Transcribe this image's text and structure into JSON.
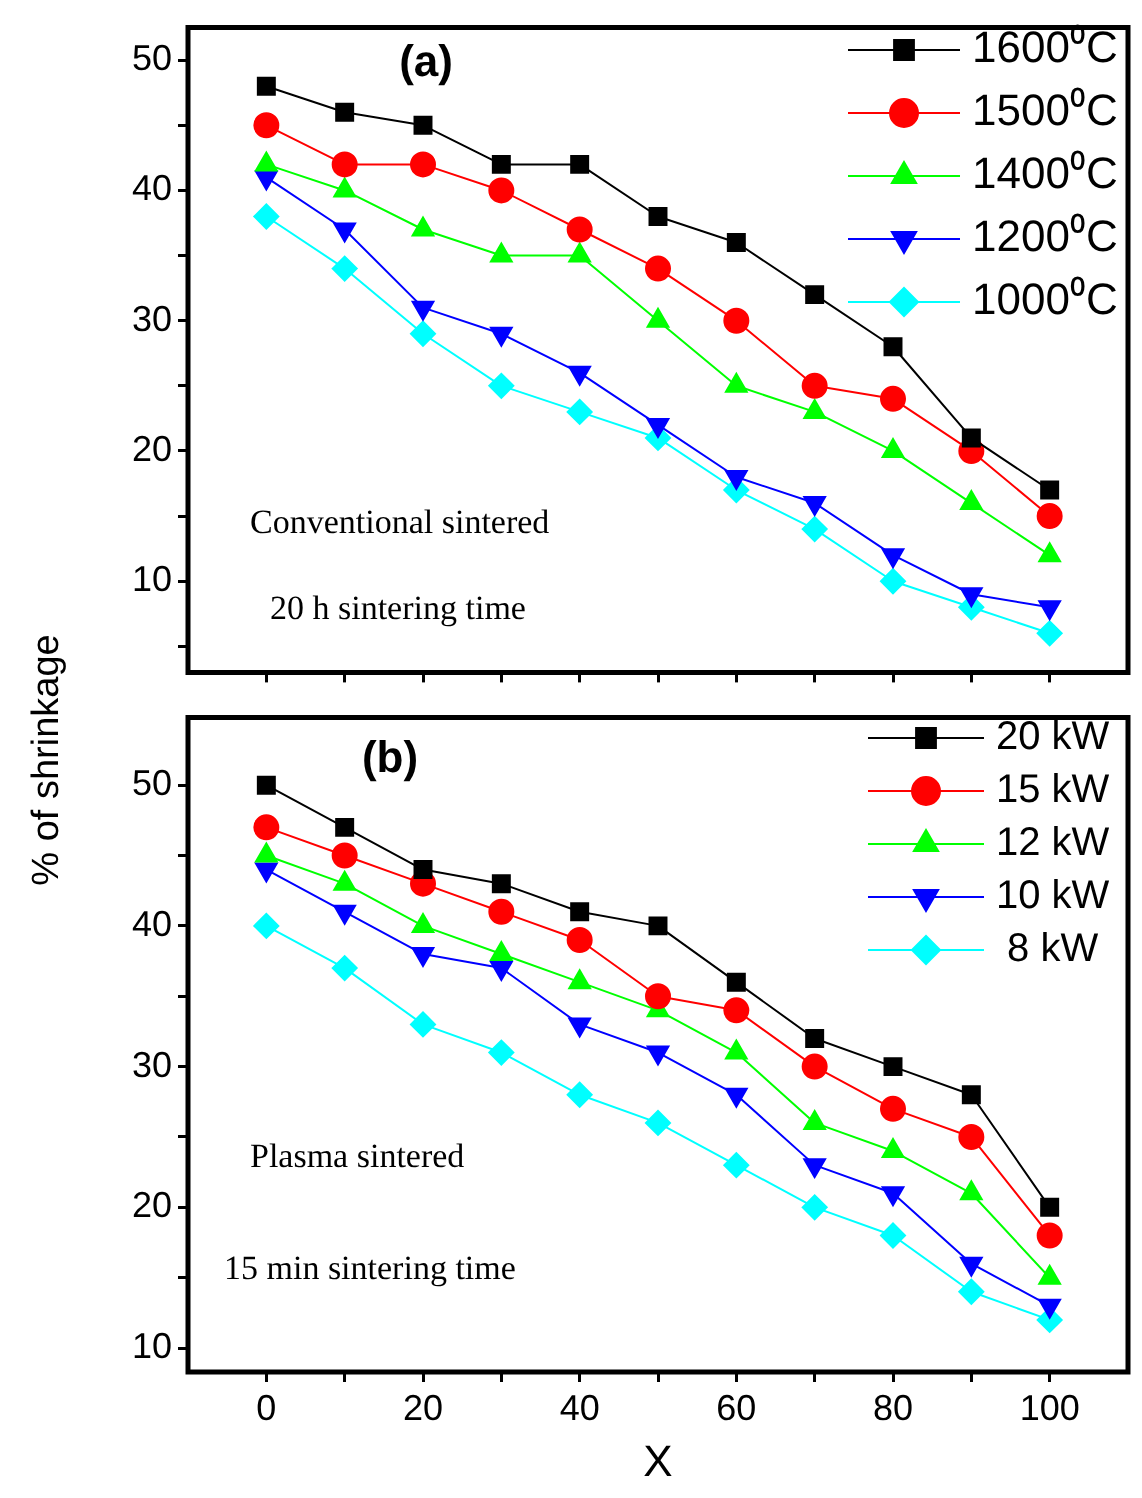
{
  "chart_data": [
    {
      "type": "line",
      "title": "(a)",
      "ylabel": "% of shrinkage",
      "annotations": [
        "Conventional sintered",
        "20 h sintering time"
      ],
      "x": [
        0,
        10,
        20,
        30,
        40,
        50,
        60,
        70,
        80,
        90,
        100
      ],
      "series": [
        {
          "name": "1600⁰C",
          "color": "#000000",
          "marker": "square",
          "values": [
            48,
            46,
            45,
            42,
            42,
            38,
            36,
            32,
            28,
            21,
            17
          ]
        },
        {
          "name": "1500⁰C",
          "color": "#ff0000",
          "marker": "circle",
          "values": [
            45,
            42,
            42,
            40,
            37,
            34,
            30,
            25,
            24,
            20,
            15
          ]
        },
        {
          "name": "1400⁰C",
          "color": "#00ff00",
          "marker": "triangle",
          "values": [
            42,
            40,
            37,
            35,
            35,
            30,
            25,
            23,
            20,
            16,
            12
          ]
        },
        {
          "name": "1200⁰C",
          "color": "#0000ff",
          "marker": "triangle-down",
          "values": [
            41,
            37,
            31,
            29,
            26,
            22,
            18,
            16,
            12,
            9,
            8
          ]
        },
        {
          "name": "1000⁰C",
          "color": "#00ffff",
          "marker": "diamond",
          "values": [
            38,
            34,
            29,
            25,
            23,
            21,
            17,
            14,
            10,
            8,
            6
          ]
        }
      ],
      "xlim": [
        -10,
        110
      ],
      "xticks": [
        0,
        {
          "value": 10,
          "label": null
        },
        20,
        {
          "value": 30,
          "label": null
        },
        40,
        {
          "value": 50,
          "label": null
        },
        60,
        {
          "value": 70,
          "label": null
        },
        80,
        {
          "value": 90,
          "label": null
        },
        100
      ],
      "ylim": [
        3,
        52.5
      ],
      "yticks": [
        {
          "value": 5,
          "label": null
        },
        10,
        {
          "value": 15,
          "label": null
        },
        20,
        {
          "value": 25,
          "label": null
        },
        30,
        {
          "value": 35,
          "label": null
        },
        40,
        {
          "value": 45,
          "label": null
        },
        50
      ],
      "tick_labels": "y",
      "grid": false,
      "legend": "top right",
      "line_style": "solid"
    },
    {
      "type": "line",
      "title": "(b)",
      "xlabel": "X",
      "annotations": [
        "Plasma sintered",
        "15 min sintering time"
      ],
      "x": [
        0,
        10,
        20,
        30,
        40,
        50,
        60,
        70,
        80,
        90,
        100
      ],
      "series": [
        {
          "name": "20 kW",
          "color": "#000000",
          "marker": "square",
          "values": [
            50,
            47,
            44,
            43,
            41,
            40,
            36,
            32,
            30,
            28,
            20
          ]
        },
        {
          "name": "15 kW",
          "color": "#ff0000",
          "marker": "circle",
          "values": [
            47,
            45,
            43,
            41,
            39,
            35,
            34,
            30,
            27,
            25,
            18
          ]
        },
        {
          "name": "12 kW",
          "color": "#00ff00",
          "marker": "triangle",
          "values": [
            45,
            43,
            40,
            38,
            36,
            34,
            31,
            26,
            24,
            21,
            15
          ]
        },
        {
          "name": "10 kW",
          "color": "#0000ff",
          "marker": "triangle-down",
          "values": [
            44,
            41,
            38,
            37,
            33,
            31,
            28,
            23,
            21,
            16,
            13
          ]
        },
        {
          "name": " 8 kW",
          "color": "#00ffff",
          "marker": "diamond",
          "values": [
            40,
            37,
            33,
            31,
            28,
            26,
            23,
            20,
            18,
            14,
            12
          ]
        }
      ],
      "xlim": [
        -10,
        110
      ],
      "xticks": [
        0,
        {
          "value": 10,
          "label": null
        },
        20,
        {
          "value": 30,
          "label": null
        },
        40,
        {
          "value": 50,
          "label": null
        },
        60,
        {
          "value": 70,
          "label": null
        },
        80,
        {
          "value": 90,
          "label": null
        },
        100
      ],
      "ylim": [
        8.3,
        54.8
      ],
      "yticks": [
        10,
        {
          "value": 15,
          "label": null
        },
        20,
        {
          "value": 25,
          "label": null
        },
        30,
        {
          "value": 35,
          "label": null
        },
        40,
        {
          "value": 45,
          "label": null
        },
        50
      ],
      "grid": false,
      "legend": "top right",
      "line_style": "solid"
    }
  ]
}
